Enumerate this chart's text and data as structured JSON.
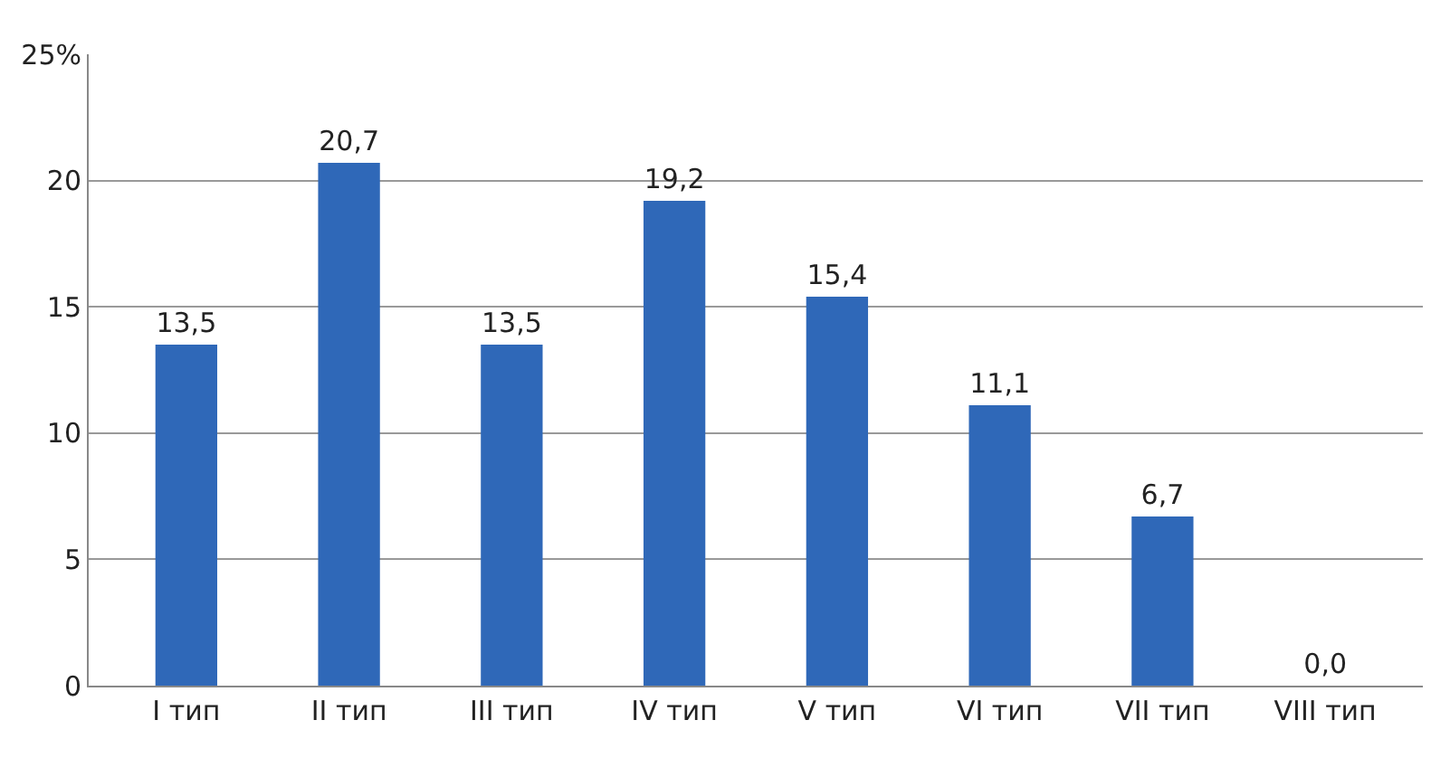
{
  "chart_data": {
    "type": "bar",
    "categories": [
      "I тип",
      "II тип",
      "III тип",
      "IV тип",
      "V тип",
      "VI тип",
      "VII тип",
      "VIII тип"
    ],
    "values": [
      13.5,
      20.7,
      13.5,
      19.2,
      15.4,
      11.1,
      6.7,
      0.0
    ],
    "value_labels": [
      "13,5",
      "20,7",
      "13,5",
      "19,2",
      "15,4",
      "11,1",
      "6,7",
      "0,0"
    ],
    "color": "#2f68b8",
    "ylim": [
      0,
      25
    ],
    "yticks": [
      0,
      5,
      10,
      15,
      20,
      {
        "value": 25,
        "label": "25%"
      }
    ],
    "grid": "y"
  }
}
